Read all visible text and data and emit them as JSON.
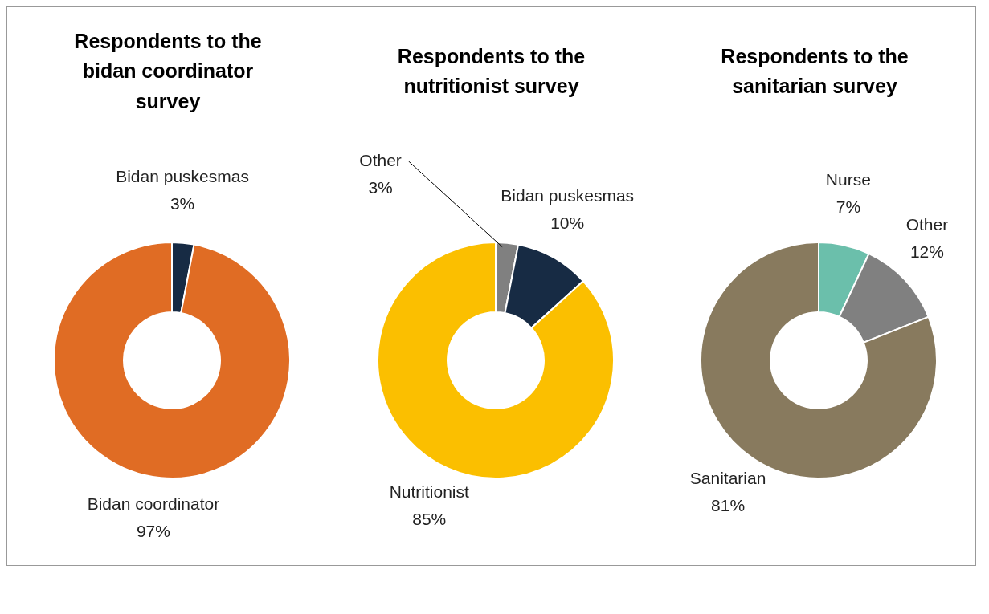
{
  "chart_data": [
    {
      "type": "donut",
      "title": "Respondents to the bidan coordinator survey",
      "categories": [
        "Bidan puskesmas",
        "Bidan coordinator"
      ],
      "values": [
        3,
        97
      ],
      "colors": [
        "#172b44",
        "#e06c24"
      ],
      "value_labels": [
        "3%",
        "97%"
      ]
    },
    {
      "type": "donut",
      "title": "Respondents to the nutritionist survey",
      "categories": [
        "Other",
        "Bidan puskesmas",
        "Nutritionist"
      ],
      "values": [
        3,
        10,
        85
      ],
      "colors": [
        "#808080",
        "#172b44",
        "#fbbf00"
      ],
      "value_labels": [
        "3%",
        "10%",
        "85%"
      ]
    },
    {
      "type": "donut",
      "title": "Respondents to the sanitarian survey",
      "categories": [
        "Nurse",
        "Other",
        "Sanitarian"
      ],
      "values": [
        7,
        12,
        81
      ],
      "colors": [
        "#6bbfab",
        "#808080",
        "#887a5e"
      ],
      "value_labels": [
        "7%",
        "12%",
        "81%"
      ]
    }
  ]
}
